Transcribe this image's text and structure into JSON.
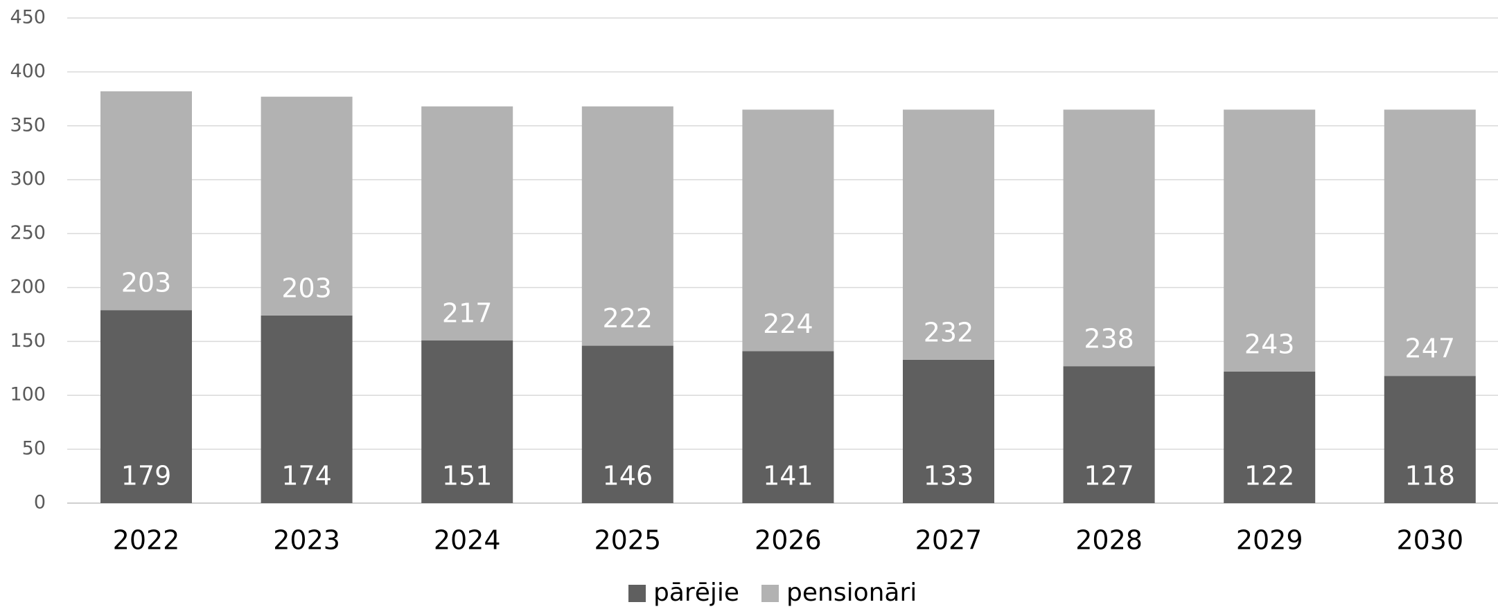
{
  "chart_data": {
    "type": "bar",
    "stacked": true,
    "categories": [
      "2022",
      "2023",
      "2024",
      "2025",
      "2026",
      "2027",
      "2028",
      "2029",
      "2030"
    ],
    "series": [
      {
        "name": "pārējie",
        "color": "#5f5f5f",
        "values": [
          179,
          174,
          151,
          146,
          141,
          133,
          127,
          122,
          118
        ]
      },
      {
        "name": "pensionāri",
        "color": "#b2b2b2",
        "values": [
          203,
          203,
          217,
          222,
          224,
          232,
          238,
          243,
          247
        ]
      }
    ],
    "ylim": [
      0,
      450
    ],
    "yticks": [
      0,
      50,
      100,
      150,
      200,
      250,
      300,
      350,
      400,
      450
    ],
    "grid": true,
    "legend": "bottom"
  }
}
